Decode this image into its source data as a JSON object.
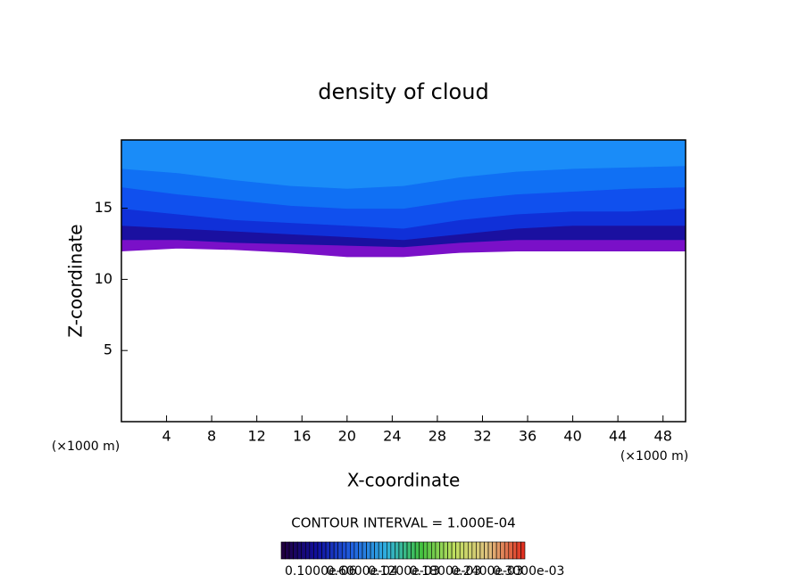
{
  "chart_data": {
    "type": "contour",
    "title": "density of cloud",
    "x_label": "X-coordinate",
    "y_label": "Z-coordinate",
    "x_unit": "(×1000 m)",
    "y_unit": "(×1000 m)",
    "xlim": [
      0,
      50
    ],
    "ylim": [
      0,
      19.8
    ],
    "xticks": [
      4,
      8,
      12,
      16,
      20,
      24,
      28,
      32,
      36,
      40,
      44,
      48
    ],
    "yticks": [
      5,
      10,
      15
    ],
    "x": [
      0,
      5,
      10,
      15,
      20,
      25,
      30,
      35,
      40,
      45,
      50
    ],
    "levels": [
      {
        "color": "#7a10c8",
        "z": [
          12.0,
          12.2,
          12.1,
          11.9,
          11.6,
          11.6,
          11.9,
          12.0,
          12.0,
          12.0,
          12.0
        ]
      },
      {
        "color": "#1a10a0",
        "z": [
          12.8,
          12.8,
          12.6,
          12.5,
          12.4,
          12.3,
          12.6,
          12.8,
          12.8,
          12.8,
          12.8
        ]
      },
      {
        "color": "#1030d8",
        "z": [
          13.8,
          13.6,
          13.4,
          13.2,
          13.0,
          12.8,
          13.2,
          13.6,
          13.8,
          13.8,
          13.8
        ]
      },
      {
        "color": "#1050ee",
        "z": [
          15.0,
          14.6,
          14.2,
          14.0,
          13.8,
          13.6,
          14.2,
          14.6,
          14.8,
          14.8,
          15.0
        ]
      },
      {
        "color": "#1070f4",
        "z": [
          16.5,
          16.0,
          15.6,
          15.2,
          15.0,
          15.0,
          15.6,
          16.0,
          16.2,
          16.4,
          16.5
        ]
      },
      {
        "color": "#1a8cf8",
        "z": [
          17.8,
          17.5,
          17.0,
          16.6,
          16.4,
          16.6,
          17.2,
          17.6,
          17.8,
          17.9,
          18.0
        ]
      }
    ],
    "contour_interval": "CONTOUR INTERVAL = 1.000E-04",
    "colorbar_colors": [
      "#200040",
      "#1010a0",
      "#2060e0",
      "#30b0e0",
      "#40c040",
      "#c0e060",
      "#e0c080",
      "#e03020"
    ],
    "colorbar_labels": [
      "0.1000e-06",
      "0.6000e-04",
      "0.1200e-03",
      "0.1800e-03",
      "0.2400e-03",
      "0.3000e-03"
    ]
  }
}
